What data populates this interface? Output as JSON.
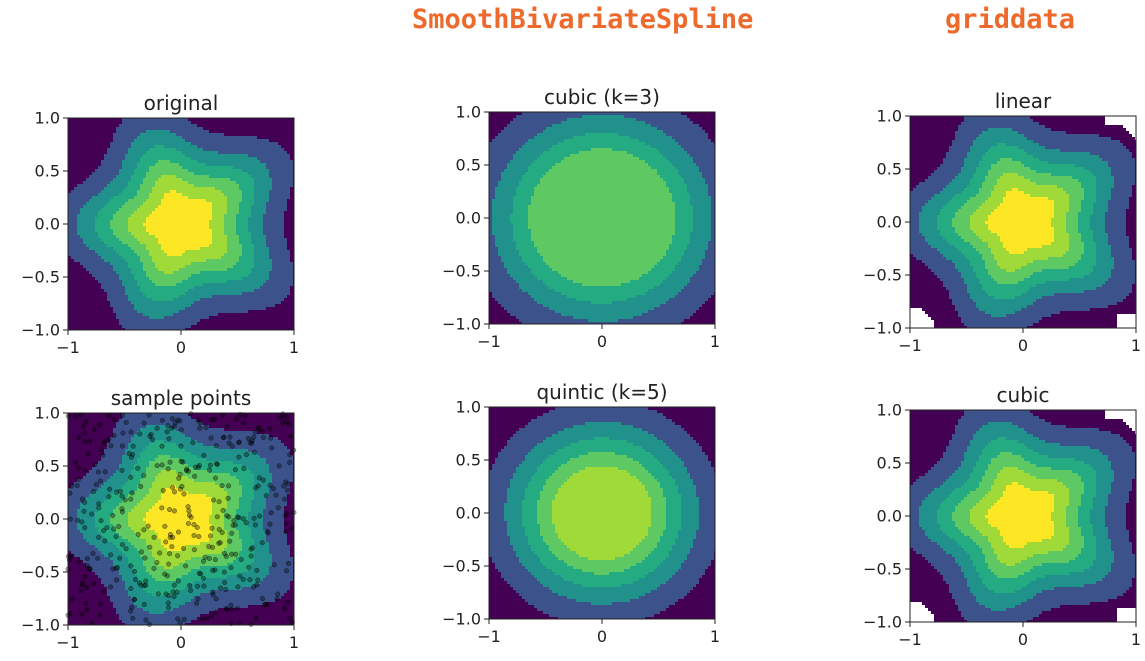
{
  "headers": {
    "spline": "SmoothBivariateSpline",
    "griddata": "griddata"
  },
  "colors": {
    "header": "#ee6a2c",
    "levels": [
      "#440154",
      "#3b528b",
      "#21918c",
      "#25ab82",
      "#5ec962",
      "#a0da39",
      "#fde725"
    ]
  },
  "chart_data": [
    {
      "type": "heatmap",
      "title": "original",
      "xlim": [
        -1,
        1
      ],
      "ylim": [
        -1,
        1
      ],
      "x_ticks": [
        "−1",
        "0",
        "1"
      ],
      "y_ticks": [
        "1.0",
        "0.5",
        "0.0",
        "−0.5",
        "−1.0"
      ],
      "surface": "star",
      "star_amplitude": 0.12,
      "star_lobes": 5,
      "radial_scale": 1.05
    },
    {
      "type": "heatmap",
      "title": "sample points",
      "xlim": [
        -1,
        1
      ],
      "ylim": [
        -1,
        1
      ],
      "x_ticks": [
        "−1",
        "0",
        "1"
      ],
      "y_ticks": [
        "1.0",
        "0.5",
        "0.0",
        "−0.5",
        "−1.0"
      ],
      "surface": "star",
      "star_amplitude": 0.12,
      "star_lobes": 5,
      "radial_scale": 1.05,
      "overlay": "scatter",
      "n_points": 400
    },
    {
      "type": "heatmap",
      "title": "cubic (k=3)",
      "xlim": [
        -1,
        1
      ],
      "ylim": [
        -1,
        1
      ],
      "x_ticks": [
        "−1",
        "0",
        "1"
      ],
      "y_ticks": [
        "1.0",
        "0.5",
        "0.0",
        "−0.5",
        "−1.0"
      ],
      "surface": "smooth",
      "star_amplitude": 0,
      "star_lobes": 0,
      "radial_scale": 0.88,
      "max_level": 4
    },
    {
      "type": "heatmap",
      "title": "quintic (k=5)",
      "xlim": [
        -1,
        1
      ],
      "ylim": [
        -1,
        1
      ],
      "x_ticks": [
        "−1",
        "0",
        "1"
      ],
      "y_ticks": [
        "1.0",
        "0.5",
        "0.0",
        "−0.5",
        "−1.0"
      ],
      "surface": "smooth",
      "star_amplitude": 0,
      "star_lobes": 0,
      "radial_scale": 1.0,
      "max_level": 5
    },
    {
      "type": "heatmap",
      "title": "linear",
      "xlim": [
        -1,
        1
      ],
      "ylim": [
        -1,
        1
      ],
      "x_ticks": [
        "−1",
        "0",
        "1"
      ],
      "y_ticks": [
        "1.0",
        "0.5",
        "0.0",
        "−0.5",
        "−1.0"
      ],
      "surface": "star",
      "star_amplitude": 0.12,
      "star_lobes": 5,
      "radial_scale": 1.05,
      "hull_clipped": true
    },
    {
      "type": "heatmap",
      "title": "cubic",
      "xlim": [
        -1,
        1
      ],
      "ylim": [
        -1,
        1
      ],
      "x_ticks": [
        "−1",
        "0",
        "1"
      ],
      "y_ticks": [
        "1.0",
        "0.5",
        "0.0",
        "−0.5",
        "−1.0"
      ],
      "surface": "star",
      "star_amplitude": 0.12,
      "star_lobes": 5,
      "radial_scale": 1.05,
      "hull_clipped": true
    }
  ]
}
